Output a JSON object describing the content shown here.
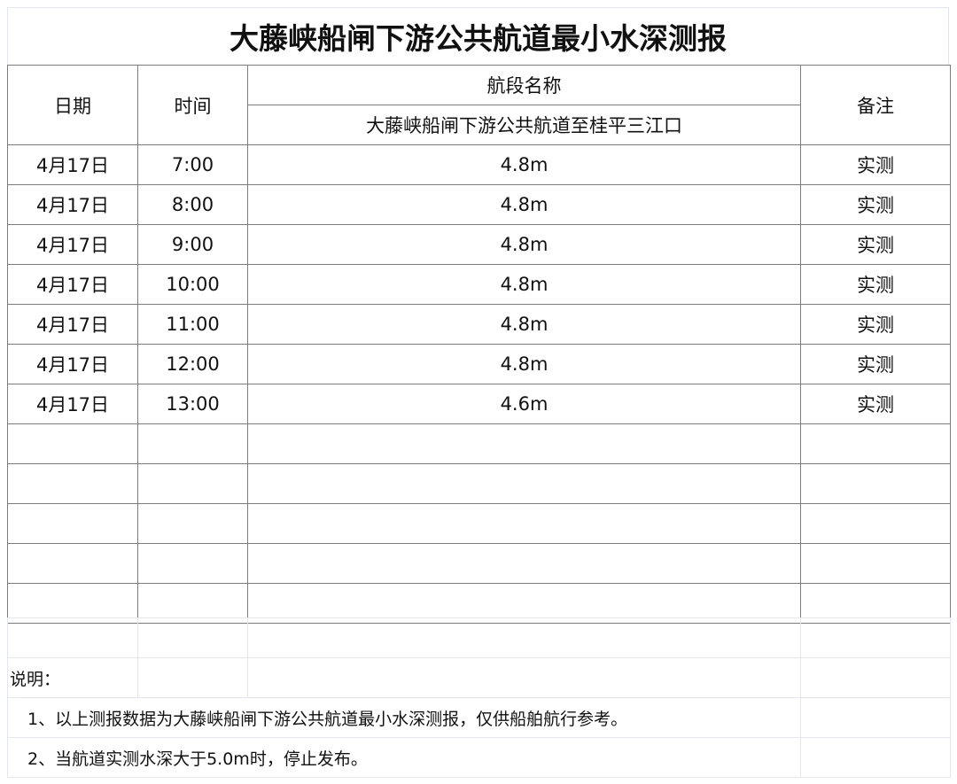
{
  "title": "大藤峡船闸下游公共航道最小水深测报",
  "header": {
    "date": "日期",
    "time": "时间",
    "section_name": "航段名称",
    "section": "大藤峡船闸下游公共航道至桂平三江口",
    "remark": "备注"
  },
  "rows": [
    {
      "date": "4月17日",
      "time": "7:00",
      "depth": "4.8m",
      "remark": "实测"
    },
    {
      "date": "4月17日",
      "time": "8:00",
      "depth": "4.8m",
      "remark": "实测"
    },
    {
      "date": "4月17日",
      "time": "9:00",
      "depth": "4.8m",
      "remark": "实测"
    },
    {
      "date": "4月17日",
      "time": "10:00",
      "depth": "4.8m",
      "remark": "实测"
    },
    {
      "date": "4月17日",
      "time": "11:00",
      "depth": "4.8m",
      "remark": "实测"
    },
    {
      "date": "4月17日",
      "time": "12:00",
      "depth": "4.8m",
      "remark": "实测"
    },
    {
      "date": "4月17日",
      "time": "13:00",
      "depth": "4.6m",
      "remark": "实测"
    }
  ],
  "notes": {
    "label": "说明：",
    "items": [
      "1、以上测报数据为大藤峡船闸下游公共航道最小水深测报，仅供船舶航行参考。",
      "2、当航道实测水深大于5.0m时，停止发布。"
    ]
  }
}
